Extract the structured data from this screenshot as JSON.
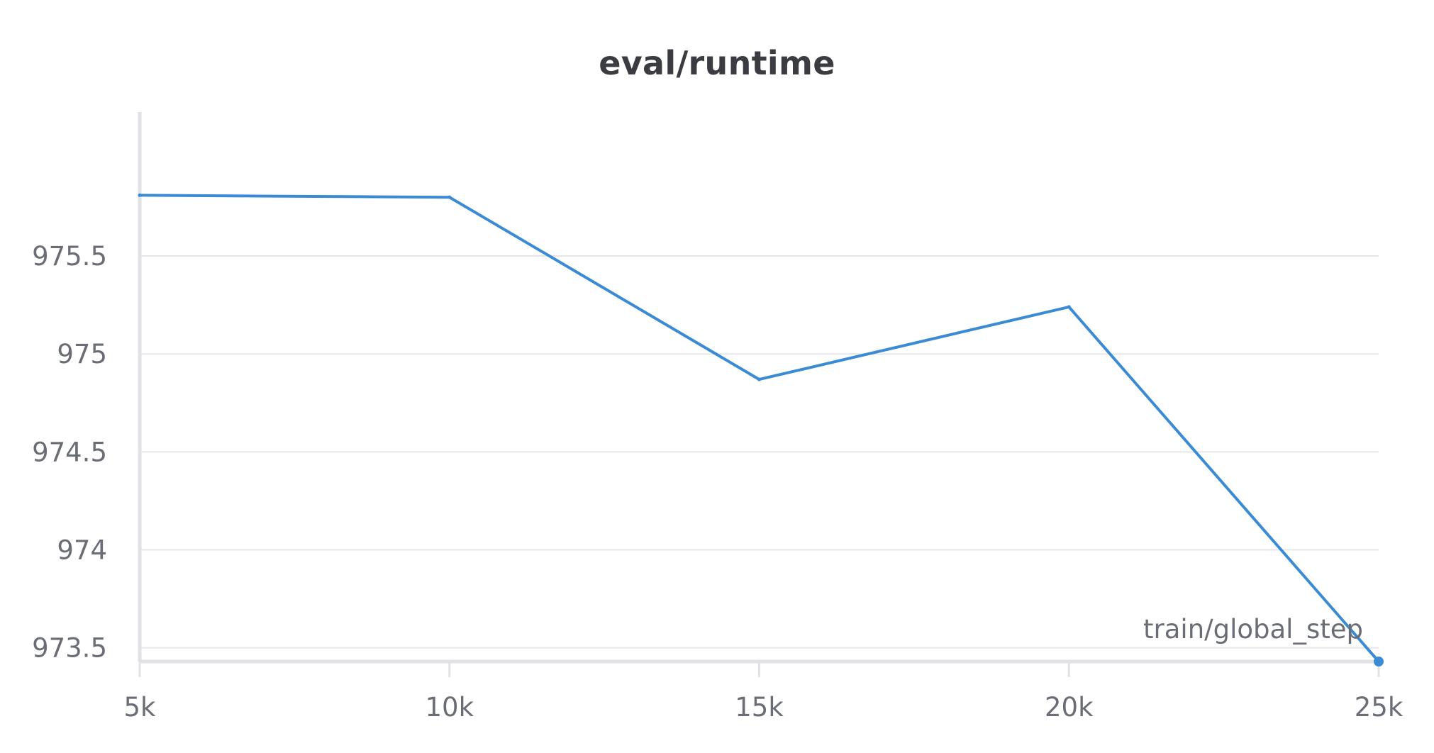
{
  "chart_data": {
    "type": "line",
    "title": "eval/runtime",
    "xlabel": "train/global_step",
    "ylabel": "",
    "xlim": [
      5000,
      25000
    ],
    "ylim": [
      973.43,
      976.3
    ],
    "x_ticks": [
      5000,
      10000,
      15000,
      20000,
      25000
    ],
    "x_tick_labels": [
      "5k",
      "10k",
      "15k",
      "20k",
      "25k"
    ],
    "y_ticks": [
      973.5,
      974,
      974.5,
      975,
      975.5
    ],
    "y_tick_labels": [
      "973.5",
      "974",
      "974.5",
      "975",
      "975.5"
    ],
    "grid": true,
    "legend": "none",
    "line_color": "#3a8bd4",
    "series": [
      {
        "x": [
          5000,
          10000,
          15000,
          20000,
          25000
        ],
        "values": [
          975.81,
          975.8,
          974.87,
          975.24,
          973.43
        ]
      }
    ]
  }
}
